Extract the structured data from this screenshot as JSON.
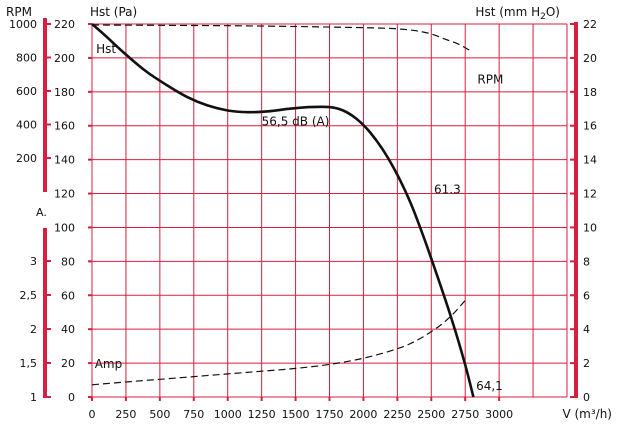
{
  "chart_data": {
    "type": "line",
    "title": "",
    "axes": {
      "x": {
        "label": "V (m³/h)",
        "range": [
          0,
          3000
        ],
        "ticks": [
          0,
          250,
          500,
          750,
          1000,
          1250,
          1500,
          1750,
          2000,
          2250,
          2500,
          2750,
          3000
        ],
        "tick_labels": [
          "0",
          "250",
          "500",
          "750",
          "1000",
          "1250",
          "1500",
          "1750",
          "2000",
          "2250",
          "2500",
          "2750",
          "3000"
        ]
      },
      "y_pa": {
        "label": "Hst (Pa)",
        "range": [
          0,
          220
        ],
        "ticks": [
          0,
          20,
          40,
          60,
          80,
          100,
          120,
          140,
          160,
          180,
          200,
          220
        ],
        "tick_labels": [
          "0",
          "20",
          "40",
          "60",
          "80",
          "100",
          "120",
          "140",
          "160",
          "180",
          "200",
          "220"
        ]
      },
      "y_mmh2o": {
        "label_main": "Hst (mm H",
        "label_sub": "2",
        "label_tail": "O)",
        "range": [
          0,
          22
        ],
        "ticks": [
          0,
          2,
          4,
          6,
          8,
          10,
          12,
          14,
          16,
          18,
          20,
          22
        ],
        "tick_labels": [
          "0",
          "2",
          "4",
          "6",
          "8",
          "10",
          "12",
          "14",
          "16",
          "18",
          "20",
          "22"
        ]
      },
      "y_rpm": {
        "label": "RPM",
        "range": [
          0,
          1000
        ],
        "ticks": [
          200,
          400,
          600,
          800,
          1000
        ],
        "tick_labels": [
          "200",
          "400",
          "600",
          "800",
          "1000"
        ]
      },
      "y_amp": {
        "label": "A.",
        "range": [
          1,
          3.5
        ],
        "ticks": [
          1,
          1.5,
          2,
          2.5,
          3
        ],
        "tick_labels": [
          "1",
          "1,5",
          "2",
          "2,5",
          "3"
        ]
      }
    },
    "grid": true,
    "series": [
      {
        "name": "Hst",
        "axis": "y_pa",
        "style": "solid",
        "x": [
          0,
          100,
          250,
          400,
          550,
          700,
          850,
          1000,
          1150,
          1300,
          1450,
          1600,
          1750,
          1850,
          1950,
          2050,
          2150,
          2250,
          2350,
          2450,
          2550,
          2650,
          2750,
          2810
        ],
        "y": [
          220,
          213,
          202,
          192,
          184,
          177,
          172,
          169,
          168,
          168.5,
          170,
          171,
          171,
          169,
          164,
          156,
          145,
          131,
          114,
          93,
          70,
          46,
          19,
          0
        ]
      },
      {
        "name": "RPM",
        "axis": "y_rpm",
        "style": "dashed",
        "x": [
          0,
          500,
          1000,
          1500,
          1900,
          2150,
          2300,
          2400,
          2500,
          2600,
          2700,
          2790
        ],
        "y": [
          994,
          992,
          990,
          985,
          980,
          975,
          968,
          958,
          940,
          910,
          880,
          840
        ]
      },
      {
        "name": "Amp",
        "axis": "y_amp",
        "style": "dashed",
        "x": [
          0,
          250,
          500,
          750,
          1000,
          1250,
          1500,
          1750,
          2000,
          2250,
          2400,
          2550,
          2650,
          2750
        ],
        "y": [
          1.18,
          1.22,
          1.26,
          1.3,
          1.34,
          1.38,
          1.42,
          1.48,
          1.57,
          1.71,
          1.84,
          2.03,
          2.2,
          2.42
        ]
      }
    ],
    "annotations": [
      {
        "text": "Hst",
        "x": 30,
        "y_pa": 203
      },
      {
        "text": "RPM",
        "x": 2840,
        "y_pa": 185
      },
      {
        "text": "Amp",
        "x": 20,
        "y_pa": 17
      },
      {
        "text": "56,5 dB (A)",
        "x": 1250,
        "y_pa": 160
      },
      {
        "text": "61.3",
        "x": 2520,
        "y_pa": 120
      },
      {
        "text": "64,1",
        "x": 2830,
        "y_pa": 4
      }
    ],
    "colors": {
      "grid": "#d81f3f",
      "curve": "#111111"
    }
  }
}
